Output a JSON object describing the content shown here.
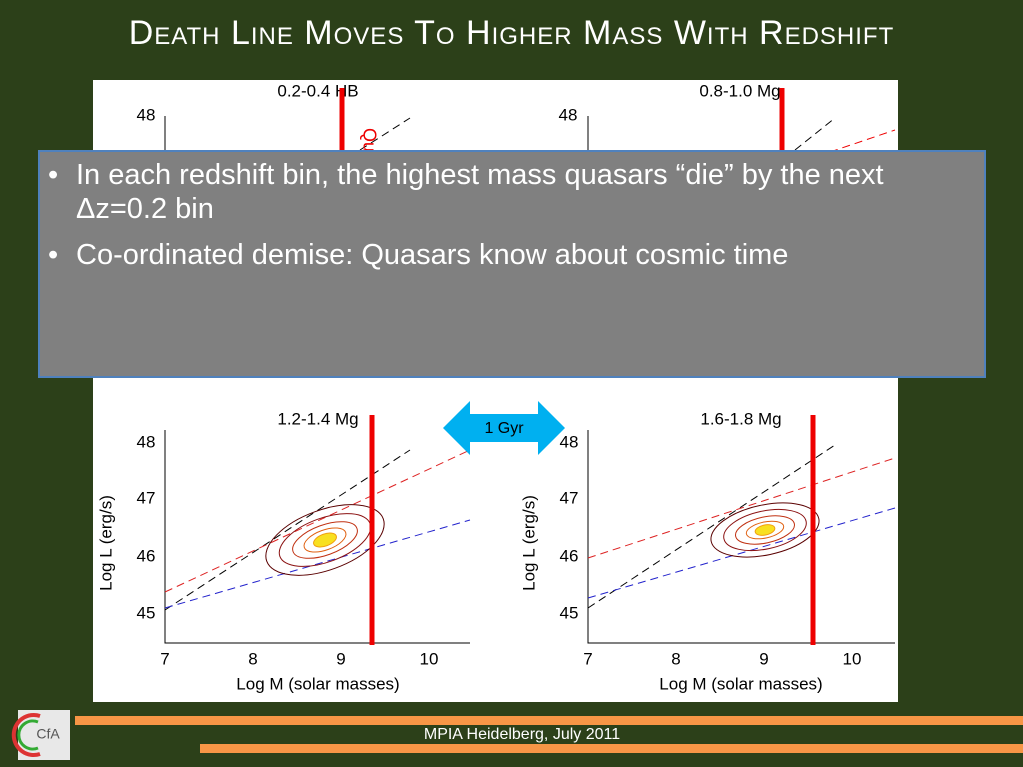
{
  "title": "Death Line Moves to Higher Mass with Redshift",
  "bullets": [
    "In each redshift bin, the highest mass quasars “die” by the next Δz=0.2 bin",
    "Co-ordinated demise: Quasars know about cosmic time"
  ],
  "panels": [
    {
      "label": "0.2-0.4 HB",
      "yticks": [
        "48"
      ],
      "side_label": "Qua"
    },
    {
      "label": "0.8-1.0 Mg",
      "yticks": [
        "48"
      ]
    },
    {
      "label": "1.2-1.4 Mg",
      "ylabel": "Log L (erg/s)",
      "xlabel": "Log M (solar masses)",
      "yticks": [
        "48",
        "47",
        "46",
        "45"
      ],
      "xticks": [
        "7",
        "8",
        "9",
        "10"
      ]
    },
    {
      "label": "1.6-1.8 Mg",
      "ylabel": "Log L (erg/s)",
      "xlabel": "Log M (solar masses)",
      "yticks": [
        "48",
        "47",
        "46",
        "45"
      ],
      "xticks": [
        "7",
        "8",
        "9",
        "10"
      ]
    }
  ],
  "arrow_label": "1 Gyr",
  "footer": "MPIA Heidelberg, July 2011",
  "logo": "CfA"
}
